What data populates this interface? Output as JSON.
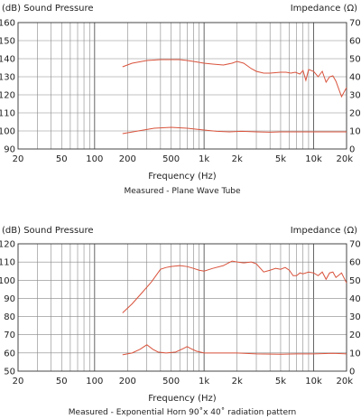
{
  "chart_data": [
    {
      "type": "line",
      "title": "Measured - Plane Wave Tube",
      "xlabel": "Frequency (Hz)",
      "ylabel": "(dB) Sound Pressure",
      "y2label": "Impedance (Ω)",
      "xscale": "log",
      "xlim": [
        20,
        20000
      ],
      "ylim": [
        90,
        160
      ],
      "y2lim": [
        0,
        70
      ],
      "grid": true,
      "x_ticks": [
        20,
        50,
        100,
        200,
        500,
        1000,
        2000,
        5000,
        10000,
        20000
      ],
      "x_tick_labels": [
        "20",
        "50",
        "100",
        "200",
        "500",
        "1k",
        "2k",
        "5k",
        "10k",
        "20k"
      ],
      "y_ticks": [
        90,
        100,
        110,
        120,
        130,
        140,
        150,
        160
      ],
      "y2_ticks": [
        0,
        10,
        20,
        30,
        40,
        50,
        60,
        70
      ],
      "series": [
        {
          "axis": "left",
          "x": [
            180,
            220,
            300,
            400,
            500,
            600,
            700,
            800,
            1000,
            1200,
            1500,
            1800,
            2000,
            2300,
            2700,
            3000,
            3500,
            4000,
            5000,
            5600,
            6200,
            6800,
            7500,
            8000,
            8500,
            9000,
            10000,
            11000,
            12000,
            13000,
            14000,
            15000,
            16000,
            18000,
            20000
          ],
          "y": [
            135.5,
            137.5,
            139,
            139.5,
            139.5,
            139.5,
            139,
            138.5,
            137.5,
            137,
            136.5,
            137.5,
            138.5,
            137.5,
            134.5,
            133,
            132,
            132,
            132.5,
            132.5,
            132,
            132.5,
            131.5,
            133.5,
            128,
            134,
            133,
            130,
            133,
            127,
            130,
            130.5,
            127.5,
            119,
            124
          ]
        },
        {
          "axis": "right",
          "x": [
            180,
            250,
            350,
            500,
            700,
            1000,
            1300,
            1700,
            2200,
            3000,
            4000,
            5000,
            7000,
            10000,
            15000,
            20000
          ],
          "y": [
            8.5,
            10,
            11.5,
            12,
            11.5,
            10.5,
            9.8,
            9.5,
            9.8,
            9.5,
            9.3,
            9.5,
            9.5,
            9.5,
            9.5,
            9.5
          ]
        }
      ]
    },
    {
      "type": "line",
      "title": "Measured - Exponential Horn 90˚x 40˚ radiation pattern",
      "xlabel": "Frequency (Hz)",
      "ylabel": "(dB) Sound Pressure",
      "y2label": "Impedance (Ω)",
      "xscale": "log",
      "xlim": [
        20,
        20000
      ],
      "ylim": [
        50,
        120
      ],
      "y2lim": [
        0,
        70
      ],
      "grid": true,
      "x_ticks": [
        20,
        50,
        100,
        200,
        500,
        1000,
        2000,
        5000,
        10000,
        20000
      ],
      "x_tick_labels": [
        "20",
        "50",
        "100",
        "200",
        "500",
        "1k",
        "2k",
        "5k",
        "10k",
        "20k"
      ],
      "y_ticks": [
        50,
        60,
        70,
        80,
        90,
        100,
        110,
        120
      ],
      "y2_ticks": [
        0,
        10,
        20,
        30,
        40,
        50,
        60,
        70
      ],
      "series": [
        {
          "axis": "left",
          "x": [
            180,
            220,
            270,
            330,
            400,
            450,
            500,
            600,
            700,
            800,
            900,
            1000,
            1200,
            1500,
            1800,
            2000,
            2300,
            2700,
            3000,
            3500,
            4000,
            4500,
            5000,
            5500,
            6000,
            6500,
            7000,
            7500,
            8000,
            9000,
            10000,
            11000,
            12000,
            13000,
            14000,
            15000,
            16000,
            18000,
            20000
          ],
          "y": [
            82,
            87,
            93,
            99,
            106,
            107,
            107.5,
            108,
            107.5,
            106.5,
            105.5,
            105,
            106.5,
            108,
            110.5,
            110,
            109.5,
            110,
            109,
            104.5,
            105.5,
            106.5,
            106,
            107,
            105.5,
            102.5,
            102.5,
            104,
            103.5,
            104.5,
            104,
            102.5,
            104.5,
            100.5,
            104,
            104.5,
            101.5,
            104,
            98.5
          ]
        },
        {
          "axis": "right",
          "x": [
            180,
            220,
            260,
            300,
            340,
            380,
            450,
            550,
            650,
            700,
            750,
            850,
            1000,
            1200,
            1500,
            2000,
            3000,
            5000,
            7000,
            10000,
            15000,
            20000
          ],
          "y": [
            9,
            10,
            12,
            14.5,
            12,
            10.5,
            10,
            10.5,
            12.5,
            13.5,
            12.5,
            11,
            10,
            10,
            10,
            10,
            9.5,
            9.3,
            9.5,
            9.5,
            9.8,
            9.5
          ]
        }
      ]
    }
  ]
}
